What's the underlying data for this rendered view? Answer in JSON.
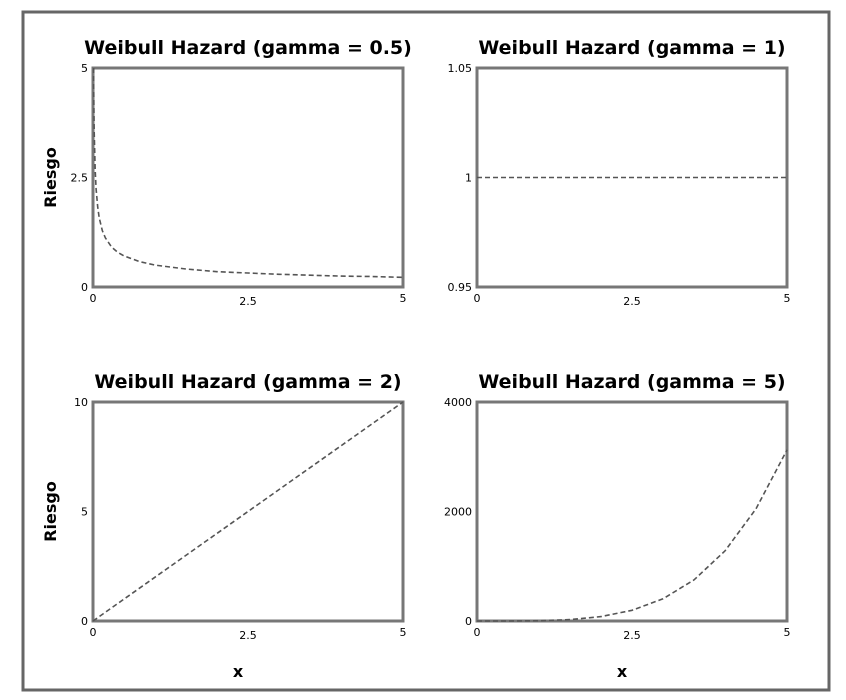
{
  "chart_data": [
    {
      "type": "line",
      "title": "Weibull Hazard (gamma = 0.5)",
      "xlabel": "",
      "ylabel": "Riesgo",
      "xlim": [
        0,
        5
      ],
      "ylim": [
        0,
        5
      ],
      "x_ticks": [
        "0",
        "2.5",
        "5"
      ],
      "y_ticks": [
        "0",
        "2.5",
        "5"
      ],
      "series": [
        {
          "x": [
            0.012,
            0.02,
            0.035,
            0.05,
            0.075,
            0.1,
            0.15,
            0.2,
            0.3,
            0.4,
            0.5,
            0.75,
            1,
            1.5,
            2,
            2.5,
            3,
            3.5,
            4,
            4.5,
            5
          ],
          "y": [
            4.56,
            3.54,
            2.67,
            2.24,
            1.83,
            1.58,
            1.29,
            1.12,
            0.91,
            0.79,
            0.71,
            0.58,
            0.5,
            0.41,
            0.35,
            0.32,
            0.29,
            0.27,
            0.25,
            0.24,
            0.22
          ]
        }
      ]
    },
    {
      "type": "line",
      "title": "Weibull Hazard (gamma = 1)",
      "xlabel": "",
      "ylabel": "",
      "xlim": [
        0,
        5
      ],
      "ylim": [
        0.95,
        1.05
      ],
      "x_ticks": [
        "0",
        "2.5",
        "5"
      ],
      "y_ticks": [
        "0.95",
        "1",
        "1.05"
      ],
      "series": [
        {
          "x": [
            0,
            5
          ],
          "y": [
            1,
            1
          ]
        }
      ]
    },
    {
      "type": "line",
      "title": "Weibull Hazard (gamma = 2)",
      "xlabel": "x",
      "ylabel": "Riesgo",
      "xlim": [
        0,
        5
      ],
      "ylim": [
        0,
        10
      ],
      "x_ticks": [
        "0",
        "2.5",
        "5"
      ],
      "y_ticks": [
        "0",
        "5",
        "10"
      ],
      "series": [
        {
          "x": [
            0,
            5
          ],
          "y": [
            0,
            10
          ]
        }
      ]
    },
    {
      "type": "line",
      "title": "Weibull Hazard (gamma = 5)",
      "xlabel": "x",
      "ylabel": "",
      "xlim": [
        0,
        5
      ],
      "ylim": [
        0,
        4000
      ],
      "x_ticks": [
        "0",
        "2.5",
        "5"
      ],
      "y_ticks": [
        "0",
        "2000",
        "4000"
      ],
      "series": [
        {
          "x": [
            0,
            0.5,
            1,
            1.5,
            2,
            2.5,
            3,
            3.5,
            4,
            4.5,
            5
          ],
          "y": [
            0,
            0.31,
            5,
            25.3,
            80,
            195,
            405,
            750,
            1280,
            2050,
            3125
          ]
        }
      ]
    }
  ]
}
